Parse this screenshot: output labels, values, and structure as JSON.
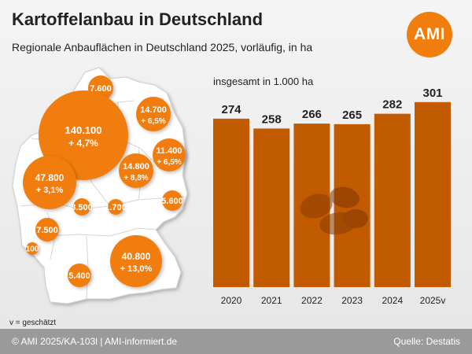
{
  "title": "Kartoffelanbau in Deutschland",
  "subtitle": "Regionale Anbauflächen in Deutschland 2025, vorläufig, in ha",
  "logo": {
    "text": "AMI",
    "color": "#f07d0c"
  },
  "map": {
    "regions": [
      {
        "area": "7.600",
        "change": ""
      },
      {
        "area": "14.700",
        "change": "+ 6,5%"
      },
      {
        "area": "140.100",
        "change": "+ 4,7%"
      },
      {
        "area": "11.400",
        "change": "+ 6,5%"
      },
      {
        "area": "47.800",
        "change": "+ 3,1%"
      },
      {
        "area": "14.800",
        "change": "+ 8,8%"
      },
      {
        "area": "5.600",
        "change": ""
      },
      {
        "area": "3.500",
        "change": ""
      },
      {
        "area": "1.700",
        "change": ""
      },
      {
        "area": "7.500",
        "change": ""
      },
      {
        "area": "100",
        "change": ""
      },
      {
        "area": "40.800",
        "change": "+ 13,0%"
      },
      {
        "area": "5.400",
        "change": ""
      }
    ]
  },
  "chart_data": {
    "type": "bar",
    "title": "insgesamt in 1.000 ha",
    "categories": [
      "2020",
      "2021",
      "2022",
      "2023",
      "2024",
      "2025v"
    ],
    "values": [
      274,
      258,
      266,
      265,
      282,
      301
    ],
    "bar_color": "#c25a00",
    "ylim": [
      0,
      310
    ],
    "grid": false
  },
  "footnote": "v = geschätzt",
  "footer": {
    "left": "© AMI 2025/KA-103l | AMI-informiert.de",
    "right": "Quelle: Destatis"
  }
}
